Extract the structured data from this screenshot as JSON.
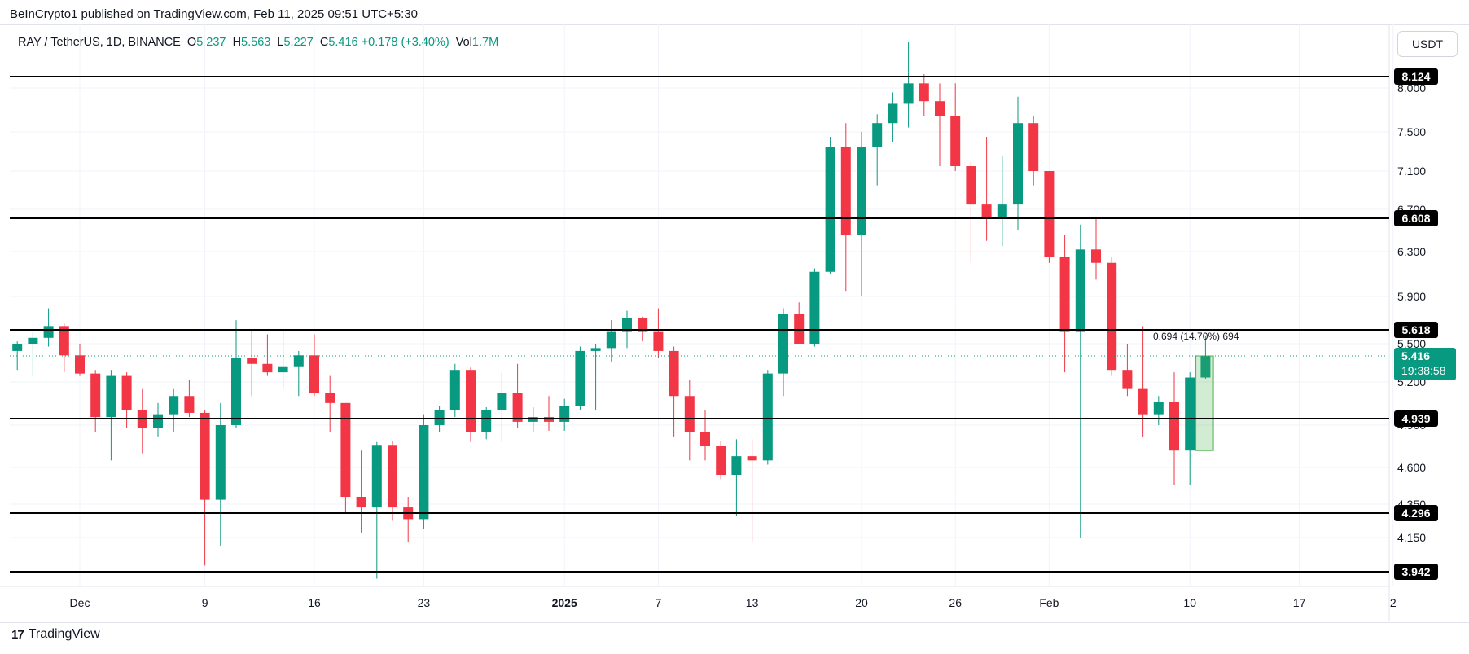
{
  "header": {
    "publisher": "BeInCrypto1 published on TradingView.com, Feb 11, 2025 09:51 UTC+5:30"
  },
  "legend": {
    "symbol": "RAY / TetherUS, 1D, BINANCE",
    "o_label": "O",
    "o_value": "5.237",
    "h_label": "H",
    "h_value": "5.563",
    "l_label": "L",
    "l_value": "5.227",
    "c_label": "C",
    "c_value": "5.416",
    "change": "+0.178 (+3.40%)",
    "vol_label": "Vol",
    "vol_value": "1.7M"
  },
  "currency": "USDT",
  "footer": {
    "logo_mark": "17",
    "brand": "TradingView"
  },
  "colors": {
    "up": "#089981",
    "down": "#f23645",
    "level": "#000000",
    "measure": "#4caf50"
  },
  "chart_data": {
    "type": "candlestick",
    "title": "",
    "y_axis_ticks": [
      8.0,
      7.5,
      7.1,
      6.7,
      6.3,
      5.9,
      5.5,
      5.2,
      4.9,
      4.6,
      4.35,
      4.15
    ],
    "y_axis_tick_labels": [
      "8.000",
      "7.500",
      "7.100",
      "6.700",
      "6.300",
      "5.900",
      "5.500",
      "5.200",
      "4.900",
      "4.600",
      "4.350",
      "4.150"
    ],
    "x_axis_labels": [
      {
        "label": "Dec",
        "day": 0
      },
      {
        "label": "9",
        "day": 8
      },
      {
        "label": "16",
        "day": 15
      },
      {
        "label": "23",
        "day": 22
      },
      {
        "label": "2025",
        "day": 31,
        "bold": true
      },
      {
        "label": "7",
        "day": 37
      },
      {
        "label": "13",
        "day": 43
      },
      {
        "label": "20",
        "day": 50
      },
      {
        "label": "26",
        "day": 56
      },
      {
        "label": "Feb",
        "day": 62
      },
      {
        "label": "10",
        "day": 71
      },
      {
        "label": "17",
        "day": 78
      },
      {
        "label": "2",
        "day": 84
      }
    ],
    "levels": [
      {
        "value": 8.124,
        "label": "8.124"
      },
      {
        "value": 6.608,
        "label": "6.608"
      },
      {
        "value": 5.618,
        "label": "5.618"
      },
      {
        "value": 4.939,
        "label": "4.939"
      },
      {
        "value": 4.296,
        "label": "4.296"
      },
      {
        "value": 3.942,
        "label": "3.942"
      }
    ],
    "last_price": {
      "value": 5.416,
      "label": "5.416",
      "countdown": "19:38:58"
    },
    "measure": {
      "text": "0.694 (14.70%) 694",
      "from": 4.72,
      "to": 5.416,
      "day_start": 71.8,
      "day_end": 72.4
    },
    "candles": [
      {
        "day": -4,
        "o": 5.45,
        "h": 5.52,
        "l": 5.3,
        "c": 5.5
      },
      {
        "day": -3,
        "o": 5.5,
        "h": 5.6,
        "l": 5.25,
        "c": 5.55
      },
      {
        "day": -2,
        "o": 5.55,
        "h": 5.8,
        "l": 5.48,
        "c": 5.65
      },
      {
        "day": -1,
        "o": 5.65,
        "h": 5.67,
        "l": 5.28,
        "c": 5.42
      },
      {
        "day": 0,
        "o": 5.42,
        "h": 5.5,
        "l": 5.25,
        "c": 5.27
      },
      {
        "day": 1,
        "o": 5.27,
        "h": 5.3,
        "l": 4.85,
        "c": 4.95
      },
      {
        "day": 2,
        "o": 4.95,
        "h": 5.3,
        "l": 4.65,
        "c": 5.25
      },
      {
        "day": 3,
        "o": 5.25,
        "h": 5.28,
        "l": 4.88,
        "c": 5.0
      },
      {
        "day": 4,
        "o": 5.0,
        "h": 5.15,
        "l": 4.7,
        "c": 4.88
      },
      {
        "day": 5,
        "o": 4.88,
        "h": 5.05,
        "l": 4.82,
        "c": 4.97
      },
      {
        "day": 6,
        "o": 4.97,
        "h": 5.15,
        "l": 4.85,
        "c": 5.1
      },
      {
        "day": 7,
        "o": 5.1,
        "h": 5.22,
        "l": 4.95,
        "c": 4.98
      },
      {
        "day": 8,
        "o": 4.98,
        "h": 5.0,
        "l": 3.98,
        "c": 4.38
      },
      {
        "day": 9,
        "o": 4.38,
        "h": 5.05,
        "l": 4.1,
        "c": 4.9
      },
      {
        "day": 10,
        "o": 4.9,
        "h": 5.7,
        "l": 4.88,
        "c": 5.4
      },
      {
        "day": 11,
        "o": 5.4,
        "h": 5.62,
        "l": 5.1,
        "c": 5.35
      },
      {
        "day": 12,
        "o": 5.35,
        "h": 5.58,
        "l": 5.25,
        "c": 5.28
      },
      {
        "day": 13,
        "o": 5.28,
        "h": 5.62,
        "l": 5.15,
        "c": 5.33
      },
      {
        "day": 14,
        "o": 5.33,
        "h": 5.45,
        "l": 5.1,
        "c": 5.42
      },
      {
        "day": 15,
        "o": 5.42,
        "h": 5.58,
        "l": 5.1,
        "c": 5.12
      },
      {
        "day": 16,
        "o": 5.12,
        "h": 5.25,
        "l": 4.85,
        "c": 5.05
      },
      {
        "day": 17,
        "o": 5.05,
        "h": 5.05,
        "l": 4.3,
        "c": 4.4
      },
      {
        "day": 18,
        "o": 4.4,
        "h": 4.72,
        "l": 4.18,
        "c": 4.33
      },
      {
        "day": 19,
        "o": 4.33,
        "h": 4.78,
        "l": 3.9,
        "c": 4.76
      },
      {
        "day": 20,
        "o": 4.76,
        "h": 4.79,
        "l": 4.25,
        "c": 4.33
      },
      {
        "day": 21,
        "o": 4.33,
        "h": 4.4,
        "l": 4.12,
        "c": 4.26
      },
      {
        "day": 22,
        "o": 4.26,
        "h": 4.97,
        "l": 4.2,
        "c": 4.9
      },
      {
        "day": 23,
        "o": 4.9,
        "h": 5.03,
        "l": 4.85,
        "c": 5.0
      },
      {
        "day": 24,
        "o": 5.0,
        "h": 5.35,
        "l": 4.95,
        "c": 5.3
      },
      {
        "day": 25,
        "o": 5.3,
        "h": 5.32,
        "l": 4.78,
        "c": 4.85
      },
      {
        "day": 26,
        "o": 4.85,
        "h": 5.02,
        "l": 4.8,
        "c": 5.0
      },
      {
        "day": 27,
        "o": 5.0,
        "h": 5.28,
        "l": 4.78,
        "c": 5.12
      },
      {
        "day": 28,
        "o": 5.12,
        "h": 5.35,
        "l": 4.88,
        "c": 4.92
      },
      {
        "day": 29,
        "o": 4.92,
        "h": 5.02,
        "l": 4.85,
        "c": 4.95
      },
      {
        "day": 30,
        "o": 4.95,
        "h": 5.1,
        "l": 4.86,
        "c": 4.92
      },
      {
        "day": 31,
        "o": 4.92,
        "h": 5.08,
        "l": 4.86,
        "c": 5.03
      },
      {
        "day": 32,
        "o": 5.03,
        "h": 5.48,
        "l": 5.0,
        "c": 5.45
      },
      {
        "day": 33,
        "o": 5.45,
        "h": 5.5,
        "l": 5.0,
        "c": 5.47
      },
      {
        "day": 34,
        "o": 5.47,
        "h": 5.7,
        "l": 5.37,
        "c": 5.6
      },
      {
        "day": 35,
        "o": 5.6,
        "h": 5.78,
        "l": 5.47,
        "c": 5.72
      },
      {
        "day": 36,
        "o": 5.72,
        "h": 5.73,
        "l": 5.52,
        "c": 5.6
      },
      {
        "day": 37,
        "o": 5.6,
        "h": 5.8,
        "l": 5.4,
        "c": 5.45
      },
      {
        "day": 38,
        "o": 5.45,
        "h": 5.48,
        "l": 4.82,
        "c": 5.1
      },
      {
        "day": 39,
        "o": 5.1,
        "h": 5.22,
        "l": 4.65,
        "c": 4.85
      },
      {
        "day": 40,
        "o": 4.85,
        "h": 5.0,
        "l": 4.65,
        "c": 4.75
      },
      {
        "day": 41,
        "o": 4.75,
        "h": 4.79,
        "l": 4.52,
        "c": 4.55
      },
      {
        "day": 42,
        "o": 4.55,
        "h": 4.8,
        "l": 4.28,
        "c": 4.68
      },
      {
        "day": 43,
        "o": 4.68,
        "h": 4.8,
        "l": 4.12,
        "c": 4.65
      },
      {
        "day": 44,
        "o": 4.65,
        "h": 5.3,
        "l": 4.62,
        "c": 5.27
      },
      {
        "day": 45,
        "o": 5.27,
        "h": 5.8,
        "l": 5.1,
        "c": 5.75
      },
      {
        "day": 46,
        "o": 5.75,
        "h": 5.85,
        "l": 5.5,
        "c": 5.5
      },
      {
        "day": 47,
        "o": 5.5,
        "h": 6.15,
        "l": 5.48,
        "c": 6.12
      },
      {
        "day": 48,
        "o": 6.12,
        "h": 7.45,
        "l": 6.1,
        "c": 7.35
      },
      {
        "day": 49,
        "o": 7.35,
        "h": 7.6,
        "l": 5.95,
        "c": 6.45
      },
      {
        "day": 50,
        "o": 6.45,
        "h": 7.5,
        "l": 5.9,
        "c": 7.35
      },
      {
        "day": 51,
        "o": 7.35,
        "h": 7.7,
        "l": 6.95,
        "c": 7.6
      },
      {
        "day": 52,
        "o": 7.6,
        "h": 7.95,
        "l": 7.4,
        "c": 7.82
      },
      {
        "day": 53,
        "o": 7.82,
        "h": 8.5,
        "l": 7.55,
        "c": 8.05
      },
      {
        "day": 54,
        "o": 8.05,
        "h": 8.15,
        "l": 7.68,
        "c": 7.85
      },
      {
        "day": 55,
        "o": 7.85,
        "h": 8.05,
        "l": 7.15,
        "c": 7.68
      },
      {
        "day": 56,
        "o": 7.68,
        "h": 8.05,
        "l": 7.1,
        "c": 7.15
      },
      {
        "day": 57,
        "o": 7.15,
        "h": 7.2,
        "l": 6.2,
        "c": 6.75
      },
      {
        "day": 58,
        "o": 6.75,
        "h": 7.45,
        "l": 6.4,
        "c": 6.62
      },
      {
        "day": 59,
        "o": 6.62,
        "h": 7.25,
        "l": 6.35,
        "c": 6.75
      },
      {
        "day": 60,
        "o": 6.75,
        "h": 7.9,
        "l": 6.5,
        "c": 7.6
      },
      {
        "day": 61,
        "o": 7.6,
        "h": 7.68,
        "l": 6.95,
        "c": 7.1
      },
      {
        "day": 62,
        "o": 7.1,
        "h": 7.1,
        "l": 6.2,
        "c": 6.25
      },
      {
        "day": 63,
        "o": 6.25,
        "h": 6.45,
        "l": 5.28,
        "c": 5.6
      },
      {
        "day": 64,
        "o": 5.6,
        "h": 6.55,
        "l": 4.15,
        "c": 6.32
      },
      {
        "day": 65,
        "o": 6.32,
        "h": 6.62,
        "l": 6.05,
        "c": 6.2
      },
      {
        "day": 66,
        "o": 6.2,
        "h": 6.25,
        "l": 5.25,
        "c": 5.3
      },
      {
        "day": 67,
        "o": 5.3,
        "h": 5.5,
        "l": 5.1,
        "c": 5.15
      },
      {
        "day": 68,
        "o": 5.15,
        "h": 5.65,
        "l": 4.82,
        "c": 4.97
      },
      {
        "day": 69,
        "o": 4.97,
        "h": 5.1,
        "l": 4.9,
        "c": 5.06
      },
      {
        "day": 70,
        "o": 5.06,
        "h": 5.28,
        "l": 4.48,
        "c": 4.72
      },
      {
        "day": 71,
        "o": 4.72,
        "h": 5.28,
        "l": 4.48,
        "c": 5.237
      },
      {
        "day": 72,
        "o": 5.237,
        "h": 5.563,
        "l": 5.227,
        "c": 5.416
      }
    ]
  }
}
